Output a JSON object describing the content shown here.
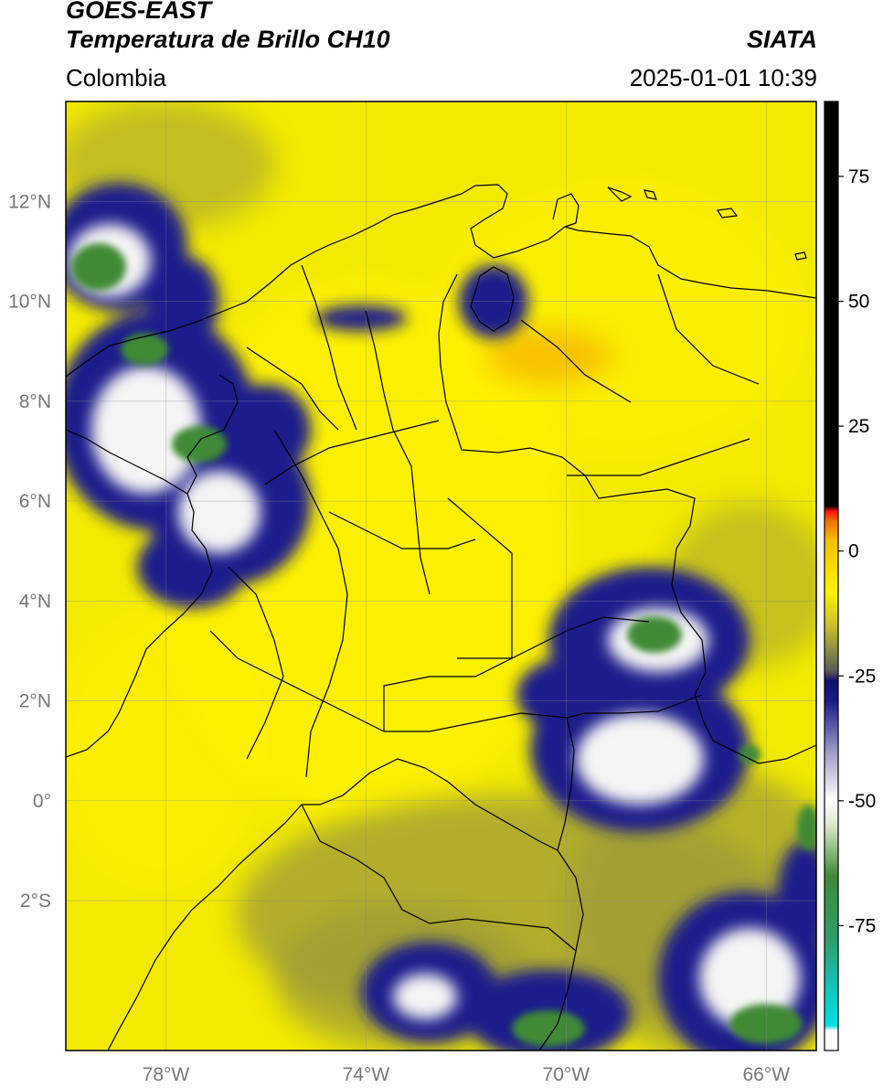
{
  "header": {
    "satellite": "GOES-EAST",
    "product": "Temperatura de Brillo CH10",
    "region": "Colombia",
    "source": "SIATA",
    "datetime": "2025-01-01 10:39"
  },
  "map": {
    "lon_range": [
      -80,
      -65
    ],
    "lat_range": [
      -5,
      14
    ],
    "lon_ticks": [
      {
        "value": -78,
        "label": "78°W"
      },
      {
        "value": -74,
        "label": "74°W"
      },
      {
        "value": -70,
        "label": "70°W"
      },
      {
        "value": -66,
        "label": "66°W"
      }
    ],
    "lat_ticks": [
      {
        "value": 12,
        "label": "12°N"
      },
      {
        "value": 10,
        "label": "10°N"
      },
      {
        "value": 8,
        "label": "8°N"
      },
      {
        "value": 6,
        "label": "6°N"
      },
      {
        "value": 4,
        "label": "4°N"
      },
      {
        "value": 2,
        "label": "2°N"
      },
      {
        "value": 0,
        "label": "0°"
      },
      {
        "value": -2,
        "label": "2°S"
      }
    ],
    "colors": {
      "warm_base": "#f2ea00",
      "bright_yellow": "#fff200",
      "olive": "#9c9a38",
      "navy": "#1c1c8c",
      "white": "#f5f5f5",
      "green": "#3f8a35",
      "orange": "#f59c00"
    }
  },
  "colorbar": {
    "min": -100,
    "max": 90,
    "ticks": [
      {
        "value": 75,
        "label": "75"
      },
      {
        "value": 50,
        "label": "50"
      },
      {
        "value": 25,
        "label": "25"
      },
      {
        "value": 0,
        "label": "0"
      },
      {
        "value": -25,
        "label": "-25"
      },
      {
        "value": -50,
        "label": "-50"
      },
      {
        "value": -75,
        "label": "-75"
      }
    ],
    "stops": [
      {
        "value": -100,
        "color": "#ffffff"
      },
      {
        "value": -96,
        "color": "#ffffff"
      },
      {
        "value": -95,
        "color": "#00e0e0"
      },
      {
        "value": -88,
        "color": "#12c7c0"
      },
      {
        "value": -78,
        "color": "#2e9e6a"
      },
      {
        "value": -65,
        "color": "#3f8a35"
      },
      {
        "value": -55,
        "color": "#d8e8c8"
      },
      {
        "value": -50,
        "color": "#ffffff"
      },
      {
        "value": -40,
        "color": "#9a9ac8"
      },
      {
        "value": -30,
        "color": "#1a1a88"
      },
      {
        "value": -26,
        "color": "#12126e"
      },
      {
        "value": -24,
        "color": "#5a5a5a"
      },
      {
        "value": -20,
        "color": "#8a8a44"
      },
      {
        "value": -15,
        "color": "#c8c030"
      },
      {
        "value": -8,
        "color": "#fff200"
      },
      {
        "value": 2,
        "color": "#f5c000"
      },
      {
        "value": 6,
        "color": "#f57000"
      },
      {
        "value": 8,
        "color": "#ff1010"
      },
      {
        "value": 9,
        "color": "#000000"
      },
      {
        "value": 90,
        "color": "#000000"
      }
    ]
  }
}
